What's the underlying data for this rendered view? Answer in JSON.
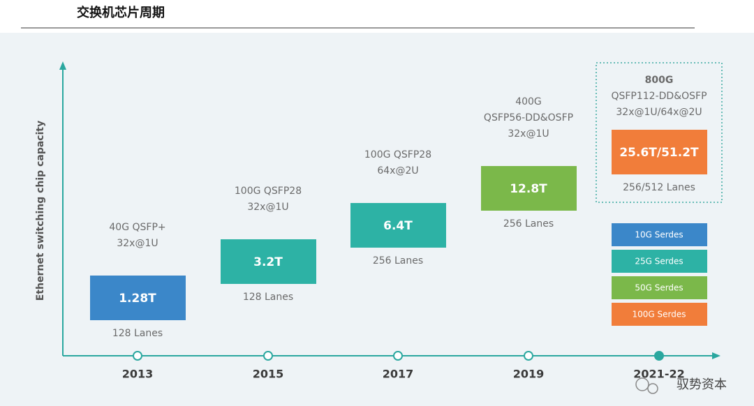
{
  "header": {
    "title": "交换机芯片周期"
  },
  "diagram": {
    "y_axis_label": "Ethernet switching chip capacity",
    "milestones": [
      {
        "year": "2013",
        "label_lines": [
          "40G QSFP+",
          "32x@1U"
        ],
        "capacity": "1.28T",
        "lanes": "128 Lanes",
        "color": "#3b87c9"
      },
      {
        "year": "2015",
        "label_lines": [
          "100G QSFP28",
          "32x@1U"
        ],
        "capacity": "3.2T",
        "lanes": "128 Lanes",
        "color": "#2db2a5"
      },
      {
        "year": "2017",
        "label_lines": [
          "100G QSFP28",
          "64x@2U"
        ],
        "capacity": "6.4T",
        "lanes": "256 Lanes",
        "color": "#2db2a5"
      },
      {
        "year": "2019",
        "label_lines": [
          "400G",
          "QSFP56-DD&OSFP",
          "32x@1U"
        ],
        "capacity": "12.8T",
        "lanes": "256 Lanes",
        "color": "#7bb84a"
      },
      {
        "year": "2021-22",
        "label_lines": [
          "800G",
          "QSFP112-DD&OSFP",
          "32x@1U/64x@2U"
        ],
        "capacity": "25.6T/51.2T",
        "lanes": "256/512 Lanes",
        "color": "#f17d3a"
      }
    ],
    "legend": [
      {
        "label": "10G Serdes",
        "color": "#3b87c9"
      },
      {
        "label": "25G Serdes",
        "color": "#2db2a5"
      },
      {
        "label": "50G Serdes",
        "color": "#7bb84a"
      },
      {
        "label": "100G Serdes",
        "color": "#f17d3a"
      }
    ]
  },
  "watermark": "驭势资本"
}
